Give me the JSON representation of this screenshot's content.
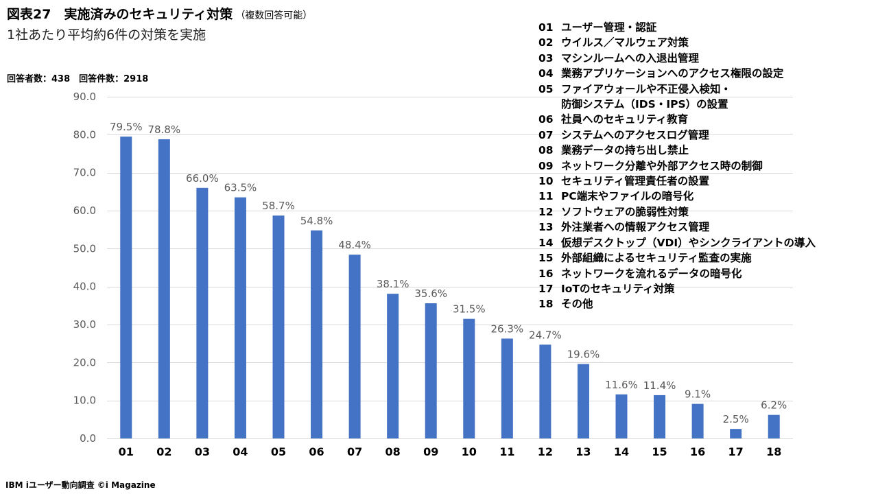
{
  "header": {
    "title": "図表27　実施済みのセキュリティ対策",
    "title_note": "（複数回答可能）",
    "subtitle": "1社あたり平均約6件の対策を実施",
    "stats": "回答者数：438　回答件数：2918"
  },
  "footer": {
    "source": "IBM iユーザー動向調査 ©i Magazine"
  },
  "colors": {
    "bar": "#4472C4",
    "grid": "#D9D9D9",
    "axis_text": "#595959",
    "label_text": "#595959"
  },
  "chart_data": {
    "type": "bar",
    "title": "実施済みのセキュリティ対策",
    "xlabel": "",
    "ylabel": "",
    "ylim": [
      0,
      90
    ],
    "yticks": [
      0,
      10,
      20,
      30,
      40,
      50,
      60,
      70,
      80,
      90
    ],
    "ytick_labels": [
      "0.0",
      "10.0",
      "20.0",
      "30.0",
      "40.0",
      "50.0",
      "60.0",
      "70.0",
      "80.0",
      "90.0"
    ],
    "grid": true,
    "categories": [
      "01",
      "02",
      "03",
      "04",
      "05",
      "06",
      "07",
      "08",
      "09",
      "10",
      "11",
      "12",
      "13",
      "14",
      "15",
      "16",
      "17",
      "18"
    ],
    "values": [
      79.5,
      78.8,
      66.0,
      63.5,
      58.7,
      54.8,
      48.4,
      38.1,
      35.6,
      31.5,
      26.3,
      24.7,
      19.6,
      11.6,
      11.4,
      9.1,
      2.5,
      6.2
    ],
    "data_labels": [
      "79.5%",
      "78.8%",
      "66.0%",
      "63.5%",
      "58.7%",
      "54.8%",
      "48.4%",
      "38.1%",
      "35.6%",
      "31.5%",
      "26.3%",
      "24.7%",
      "19.6%",
      "11.6%",
      "11.4%",
      "9.1%",
      "2.5%",
      "6.2%"
    ]
  },
  "legend": {
    "items": [
      {
        "code": "01",
        "label": "ユーザー管理・認証"
      },
      {
        "code": "02",
        "label": "ウイルス／マルウェア対策"
      },
      {
        "code": "03",
        "label": "マシンルームへの入退出管理"
      },
      {
        "code": "04",
        "label": "業務アプリケーションへのアクセス権限の設定"
      },
      {
        "code": "05",
        "label": "ファイアウォールや不正侵入検知・\n防御システム（IDS・IPS）の設置"
      },
      {
        "code": "06",
        "label": "社員へのセキュリティ教育"
      },
      {
        "code": "07",
        "label": "システムへのアクセスログ管理"
      },
      {
        "code": "08",
        "label": "業務データの持ち出し禁止"
      },
      {
        "code": "09",
        "label": "ネットワーク分離や外部アクセス時の制御"
      },
      {
        "code": "10",
        "label": "セキュリティ管理責任者の設置"
      },
      {
        "code": "11",
        "label": "PC端末やファイルの暗号化"
      },
      {
        "code": "12",
        "label": "ソフトウェアの脆弱性対策"
      },
      {
        "code": "13",
        "label": "外注業者への情報アクセス管理"
      },
      {
        "code": "14",
        "label": "仮想デスクトップ（VDI）やシンクライアントの導入"
      },
      {
        "code": "15",
        "label": "外部組織によるセキュリティ監査の実施"
      },
      {
        "code": "16",
        "label": "ネットワークを流れるデータの暗号化"
      },
      {
        "code": "17",
        "label": "IoTのセキュリティ対策"
      },
      {
        "code": "18",
        "label": "その他"
      }
    ]
  }
}
